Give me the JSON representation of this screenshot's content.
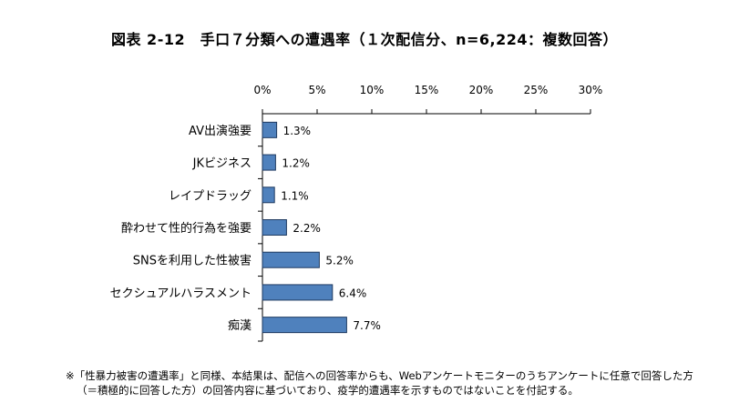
{
  "chart_data": {
    "type": "bar",
    "orientation": "horizontal",
    "title": "図表 2-12　手口７分類への遭遇率（１次配信分、n=6,224：複数回答）",
    "categories": [
      "AV出演強要",
      "JKビジネス",
      "レイプドラッグ",
      "酔わせて性的行為を強要",
      "SNSを利用した性被害",
      "セクシュアルハラスメント",
      "痴漢"
    ],
    "values": [
      1.3,
      1.2,
      1.1,
      2.2,
      5.2,
      6.4,
      7.7
    ],
    "data_labels": [
      "1.3%",
      "1.2%",
      "1.1%",
      "2.2%",
      "5.2%",
      "6.4%",
      "7.7%"
    ],
    "xlim": [
      0,
      30
    ],
    "xticks": [
      0,
      5,
      10,
      15,
      20,
      25,
      30
    ],
    "xtick_labels": [
      "0%",
      "5%",
      "10%",
      "15%",
      "20%",
      "25%",
      "30%"
    ],
    "axis_position": "top",
    "grid": false,
    "bar_color": "#4f81bd"
  },
  "footnote": {
    "line1": "※「性暴力被害の遭遇率」と同様、本結果は、配信への回答率からも、Webアンケートモニターのうちアンケートに任意で回答した方",
    "line2": "（＝積極的に回答した方）の回答内容に基づいており、疫学的遭遇率を示すものではないことを付記する。"
  }
}
